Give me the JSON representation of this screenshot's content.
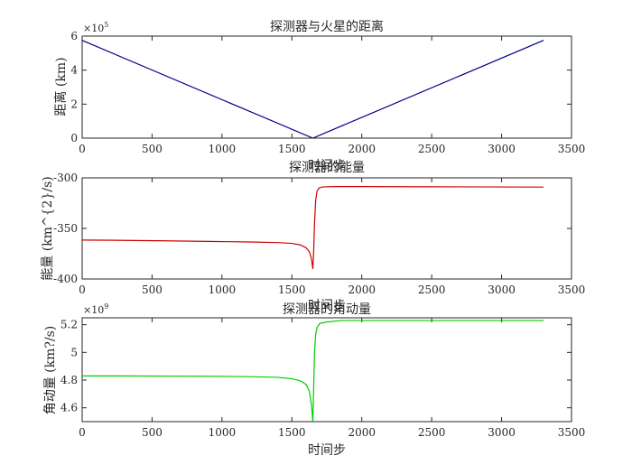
{
  "chart_data": [
    {
      "type": "line",
      "title": "探测器与火星的距离",
      "xlabel": "",
      "ylabel": "距离 (km)",
      "xlim": [
        0,
        3500
      ],
      "ylim": [
        0,
        6
      ],
      "y_multiplier": "×10",
      "y_exponent": "5",
      "xticks": [
        0,
        500,
        1000,
        1500,
        2000,
        2500,
        3000,
        3500
      ],
      "yticks": [
        0,
        2,
        4,
        6
      ],
      "grid": false,
      "color": "#00008B",
      "series": [
        {
          "x": [
            0,
            1650,
            3300
          ],
          "y": [
            5.75,
            0.0,
            5.75
          ]
        }
      ]
    },
    {
      "type": "line",
      "title": "探测器的能量",
      "xlabel": "时间步",
      "ylabel": "能量 (km^{2}/s)",
      "xlim": [
        0,
        3500
      ],
      "ylim": [
        -400,
        -300
      ],
      "xticks": [
        0,
        500,
        1000,
        1500,
        2000,
        2500,
        3000,
        3500
      ],
      "yticks": [
        -400,
        -350,
        -300
      ],
      "grid": false,
      "color": "#CC0000",
      "series": [
        {
          "x": [
            0,
            300,
            600,
            900,
            1200,
            1400,
            1500,
            1560,
            1600,
            1625,
            1640,
            1650,
            1656,
            1662,
            1670,
            1680,
            1695,
            1720,
            1800,
            2000,
            2500,
            3000,
            3300
          ],
          "y": [
            -361.5,
            -361.8,
            -362.3,
            -362.8,
            -363.4,
            -364.0,
            -364.8,
            -366.3,
            -369.0,
            -373.0,
            -380.0,
            -390.0,
            -372.0,
            -345.0,
            -322.0,
            -313.0,
            -310.0,
            -309.0,
            -308.6,
            -308.6,
            -308.8,
            -309.0,
            -309.1
          ]
        }
      ]
    },
    {
      "type": "line",
      "title": "探测器的角动量",
      "xlabel": "时间步",
      "ylabel": "角动量 (km?/s)",
      "xlim": [
        0,
        3500
      ],
      "ylim": [
        4.5,
        5.25
      ],
      "y_multiplier": "×10",
      "y_exponent": "9",
      "xticks": [
        0,
        500,
        1000,
        1500,
        2000,
        2500,
        3000,
        3500
      ],
      "yticks": [
        4.6,
        4.8,
        5,
        5.2
      ],
      "grid": false,
      "color": "#00CC00",
      "series": [
        {
          "x": [
            0,
            300,
            600,
            900,
            1200,
            1400,
            1500,
            1560,
            1600,
            1625,
            1640,
            1650,
            1656,
            1662,
            1670,
            1680,
            1700,
            1750,
            1850,
            2000,
            2500,
            3000,
            3300
          ],
          "y": [
            4.83,
            4.83,
            4.829,
            4.828,
            4.825,
            4.82,
            4.81,
            4.795,
            4.77,
            4.72,
            4.62,
            4.5,
            4.75,
            5.0,
            5.13,
            5.18,
            5.21,
            5.22,
            5.23,
            5.23,
            5.23,
            5.23,
            5.23
          ]
        }
      ]
    }
  ]
}
